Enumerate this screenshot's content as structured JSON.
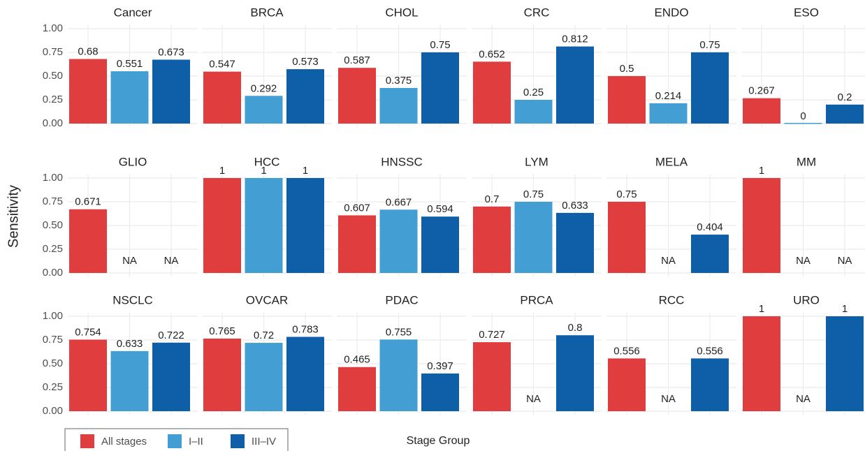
{
  "chart_data": {
    "type": "bar",
    "y_label": "Sensitivity",
    "x_label": "Stage Group",
    "ylim": [
      0,
      1
    ],
    "yticks": [
      {
        "value": 0,
        "label": "0.00"
      },
      {
        "value": 0.25,
        "label": "0.25"
      },
      {
        "value": 0.5,
        "label": "0.50"
      },
      {
        "value": 0.75,
        "label": "0.75"
      },
      {
        "value": 1,
        "label": "1.00"
      }
    ],
    "grid": true,
    "series": [
      {
        "name": "All stages",
        "color": "#e03e3e"
      },
      {
        "name": "I–II",
        "color": "#439fd3"
      },
      {
        "name": "III–IV",
        "color": "#0f5fa8"
      }
    ],
    "panels": [
      {
        "title": "Cancer",
        "values": [
          0.68,
          0.551,
          0.673
        ],
        "value_labels": [
          "0.68",
          "0.551",
          "0.673"
        ]
      },
      {
        "title": "BRCA",
        "values": [
          0.547,
          0.292,
          0.573
        ],
        "value_labels": [
          "0.547",
          "0.292",
          "0.573"
        ]
      },
      {
        "title": "CHOL",
        "values": [
          0.587,
          0.375,
          0.75
        ],
        "value_labels": [
          "0.587",
          "0.375",
          "0.75"
        ]
      },
      {
        "title": "CRC",
        "values": [
          0.652,
          0.25,
          0.812
        ],
        "value_labels": [
          "0.652",
          "0.25",
          "0.812"
        ]
      },
      {
        "title": "ENDO",
        "values": [
          0.5,
          0.214,
          0.75
        ],
        "value_labels": [
          "0.5",
          "0.214",
          "0.75"
        ]
      },
      {
        "title": "ESO",
        "values": [
          0.267,
          0,
          0.2
        ],
        "value_labels": [
          "0.267",
          "0",
          "0.2"
        ]
      },
      {
        "title": "GLIO",
        "values": [
          0.671,
          null,
          null
        ],
        "value_labels": [
          "0.671",
          "NA",
          "NA"
        ]
      },
      {
        "title": "HCC",
        "values": [
          1,
          1,
          1
        ],
        "value_labels": [
          "1",
          "1",
          "1"
        ]
      },
      {
        "title": "HNSSC",
        "values": [
          0.607,
          0.667,
          0.594
        ],
        "value_labels": [
          "0.607",
          "0.667",
          "0.594"
        ]
      },
      {
        "title": "LYM",
        "values": [
          0.7,
          0.75,
          0.633
        ],
        "value_labels": [
          "0.7",
          "0.75",
          "0.633"
        ]
      },
      {
        "title": "MELA",
        "values": [
          0.75,
          null,
          0.404
        ],
        "value_labels": [
          "0.75",
          "NA",
          "0.404"
        ]
      },
      {
        "title": "MM",
        "values": [
          1,
          null,
          null
        ],
        "value_labels": [
          "1",
          "NA",
          "NA"
        ]
      },
      {
        "title": "NSCLC",
        "values": [
          0.754,
          0.633,
          0.722
        ],
        "value_labels": [
          "0.754",
          "0.633",
          "0.722"
        ]
      },
      {
        "title": "OVCAR",
        "values": [
          0.765,
          0.72,
          0.783
        ],
        "value_labels": [
          "0.765",
          "0.72",
          "0.783"
        ]
      },
      {
        "title": "PDAC",
        "values": [
          0.465,
          0.755,
          0.397
        ],
        "value_labels": [
          "0.465",
          "0.755",
          "0.397"
        ]
      },
      {
        "title": "PRCA",
        "values": [
          0.727,
          null,
          0.8
        ],
        "value_labels": [
          "0.727",
          "NA",
          "0.8"
        ]
      },
      {
        "title": "RCC",
        "values": [
          0.556,
          null,
          0.556
        ],
        "value_labels": [
          "0.556",
          "NA",
          "0.556"
        ]
      },
      {
        "title": "URO",
        "values": [
          1,
          null,
          1
        ],
        "value_labels": [
          "1",
          "NA",
          "1"
        ]
      }
    ]
  }
}
